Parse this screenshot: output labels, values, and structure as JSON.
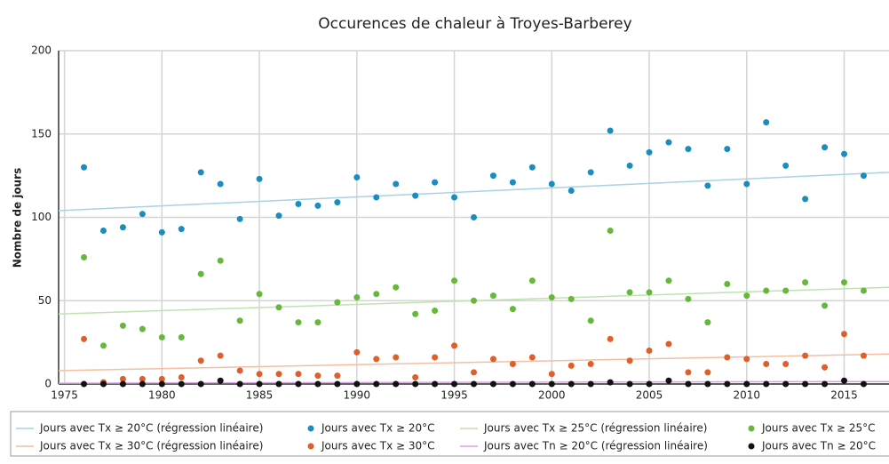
{
  "chart_data": {
    "type": "scatter",
    "title": "Occurences de chaleur à Troyes-Barberey",
    "ylabel": "Nombre de jours",
    "x": [
      1976,
      1977,
      1978,
      1979,
      1980,
      1981,
      1982,
      1983,
      1984,
      1985,
      1986,
      1987,
      1988,
      1989,
      1990,
      1991,
      1992,
      1993,
      1994,
      1995,
      1996,
      1997,
      1998,
      1999,
      2000,
      2001,
      2002,
      2003,
      2004,
      2005,
      2006,
      2007,
      2008,
      2009,
      2010,
      2011,
      2012,
      2013,
      2014,
      2015,
      2016
    ],
    "xlim": [
      1974.7,
      2017.3
    ],
    "xticks": [
      1975,
      1980,
      1985,
      1990,
      1995,
      2000,
      2005,
      2010,
      2015
    ],
    "ylim": [
      0,
      200
    ],
    "yticks": [
      0,
      50,
      100,
      150,
      200
    ],
    "grid": true,
    "legend": "bottom",
    "series": [
      {
        "name": "Jours avec Tx ≥ 20°C (régression linéaire)",
        "color": "#a9d2e3",
        "mode": "line",
        "x": [
          1974.7,
          2017.3
        ],
        "values": [
          104,
          127
        ]
      },
      {
        "name": "Jours avec Tx ≥ 20°C",
        "color": "#1a8dc0",
        "mode": "markers",
        "values": [
          130,
          92,
          94,
          102,
          91,
          93,
          127,
          120,
          99,
          123,
          101,
          108,
          107,
          109,
          124,
          112,
          120,
          113,
          121,
          112,
          100,
          125,
          121,
          130,
          120,
          116,
          127,
          152,
          131,
          139,
          145,
          141,
          119,
          141,
          120,
          157,
          131,
          111,
          142,
          138,
          125
        ]
      },
      {
        "name": "Jours avec Tx ≥ 25°C (régression linéaire)",
        "color": "#bfe2b0",
        "mode": "line",
        "x": [
          1974.7,
          2017.3
        ],
        "values": [
          42,
          58
        ]
      },
      {
        "name": "Jours avec Tx ≥ 25°C",
        "color": "#66b83a",
        "mode": "markers",
        "values": [
          76,
          23,
          35,
          33,
          28,
          28,
          66,
          74,
          38,
          54,
          46,
          37,
          37,
          49,
          52,
          54,
          58,
          42,
          44,
          62,
          50,
          53,
          45,
          62,
          52,
          51,
          38,
          92,
          55,
          55,
          62,
          51,
          37,
          60,
          53,
          56,
          56,
          61,
          47,
          61,
          56
        ]
      },
      {
        "name": "Jours avec Tx ≥ 30°C (régression linéaire)",
        "color": "#f4bea3",
        "mode": "line",
        "x": [
          1974.7,
          2017.3
        ],
        "values": [
          8,
          18
        ]
      },
      {
        "name": "Jours avec Tx ≥ 30°C",
        "color": "#de5f2a",
        "mode": "markers",
        "values": [
          27,
          1,
          3,
          3,
          3,
          4,
          14,
          17,
          8,
          6,
          6,
          6,
          5,
          5,
          19,
          15,
          16,
          4,
          16,
          23,
          7,
          15,
          12,
          16,
          6,
          11,
          12,
          27,
          14,
          20,
          24,
          7,
          7,
          16,
          15,
          12,
          12,
          17,
          10,
          30,
          17
        ]
      },
      {
        "name": "Jours avec Tn ≥ 20°C (régression linéaire)",
        "color": "#dca3e4",
        "mode": "line",
        "x": [
          1974.7,
          2017.3
        ],
        "values": [
          0.5,
          1.5
        ]
      },
      {
        "name": "Jours avec Tn ≥ 20°C",
        "color": "#111111",
        "mode": "markers",
        "values": [
          0,
          0,
          0,
          0,
          0,
          0,
          0,
          2,
          0,
          0,
          0,
          0,
          0,
          0,
          0,
          0,
          0,
          0,
          0,
          0,
          0,
          0,
          0,
          0,
          0,
          0,
          0,
          1,
          0,
          0,
          2,
          0,
          0,
          0,
          0,
          0,
          0,
          0,
          0,
          2,
          0
        ]
      }
    ]
  }
}
